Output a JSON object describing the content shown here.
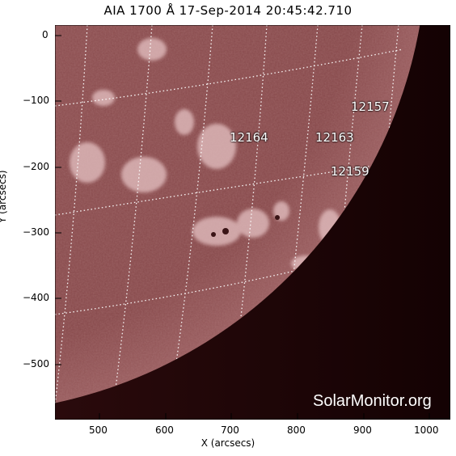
{
  "title": "AIA 1700 Å 17-Sep-2014 20:45:42.710",
  "axes": {
    "xlabel": "X (arcsecs)",
    "ylabel": "Y (arcsecs)",
    "xticks": [
      "500",
      "600",
      "700",
      "800",
      "900",
      "1000"
    ],
    "yticks": [
      "0",
      "−100",
      "−200",
      "−300",
      "−400",
      "−500"
    ]
  },
  "active_regions": [
    {
      "id": "12157"
    },
    {
      "id": "12164"
    },
    {
      "id": "12163"
    },
    {
      "id": "12159"
    }
  ],
  "watermark": "SolarMonitor.org",
  "colors": {
    "disk": "#8a4a4c",
    "disk_dark": "#6a3234",
    "limb": "#c4888a",
    "space": "#1e0406",
    "grid": "#ffffff"
  }
}
